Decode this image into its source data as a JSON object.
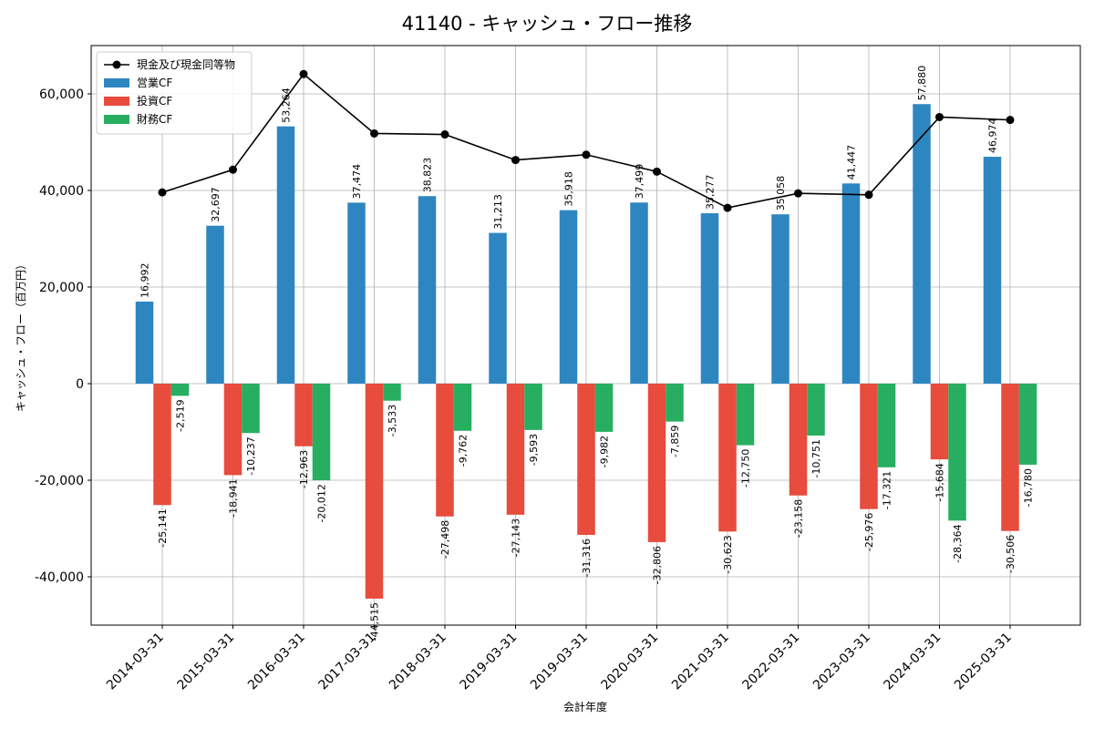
{
  "chart_data": {
    "type": "bar",
    "title": "41140 - キャッシュ・フロー推移",
    "xlabel": "会計年度",
    "ylabel": "キャッシュ・フロー（百万円）",
    "ylim": [
      -50000,
      70000
    ],
    "yticks": [
      -40000,
      -20000,
      0,
      20000,
      40000,
      60000
    ],
    "ytick_labels": [
      "-40,000",
      "-20,000",
      "0",
      "20,000",
      "40,000",
      "60,000"
    ],
    "grid": true,
    "legend_position": "top-left",
    "categories": [
      "2014-03-31",
      "2015-03-31",
      "2016-03-31",
      "2017-03-31",
      "2018-03-31",
      "2019-03-31",
      "2019-03-31",
      "2020-03-31",
      "2021-03-31",
      "2022-03-31",
      "2023-03-31",
      "2024-03-31",
      "2025-03-31"
    ],
    "series": [
      {
        "name": "営業CF",
        "kind": "bar",
        "color": "#2e86c1",
        "values": [
          16992,
          32697,
          53264,
          37474,
          38823,
          31213,
          35918,
          37499,
          35277,
          35058,
          41447,
          57880,
          46974
        ],
        "labels": [
          "16,992",
          "32,697",
          "53,264",
          "37,474",
          "38,823",
          "31,213",
          "35,918",
          "37,499",
          "35,277",
          "35,058",
          "41,447",
          "57,880",
          "46,974"
        ]
      },
      {
        "name": "投資CF",
        "kind": "bar",
        "color": "#e74c3c",
        "values": [
          -25141,
          -18941,
          -12963,
          -44515,
          -27498,
          -27143,
          -31316,
          -32806,
          -30623,
          -23158,
          -25976,
          -15684,
          -30506
        ],
        "labels": [
          "-25,141",
          "-18,941",
          "-12,963",
          "-44,515",
          "-27,498",
          "-27,143",
          "-31,316",
          "-32,806",
          "-30,623",
          "-23,158",
          "-25,976",
          "-15,684",
          "-30,506"
        ]
      },
      {
        "name": "財務CF",
        "kind": "bar",
        "color": "#27ae60",
        "values": [
          -2519,
          -10237,
          -20012,
          -3533,
          -9762,
          -9593,
          -9982,
          -7859,
          -12750,
          -10751,
          -17321,
          -28364,
          -16780
        ],
        "labels": [
          "-2,519",
          "-10,237",
          "-20,012",
          "-3,533",
          "-9,762",
          "-9,593",
          "-9,982",
          "-7,859",
          "-12,750",
          "-10,751",
          "-17,321",
          "-28,364",
          "-16,780"
        ]
      },
      {
        "name": "現金及び現金同等物",
        "kind": "line",
        "color": "#000000",
        "values": [
          39600,
          44300,
          64100,
          51800,
          51600,
          46300,
          47400,
          43900,
          36400,
          39400,
          39100,
          55200,
          54600
        ]
      }
    ]
  }
}
